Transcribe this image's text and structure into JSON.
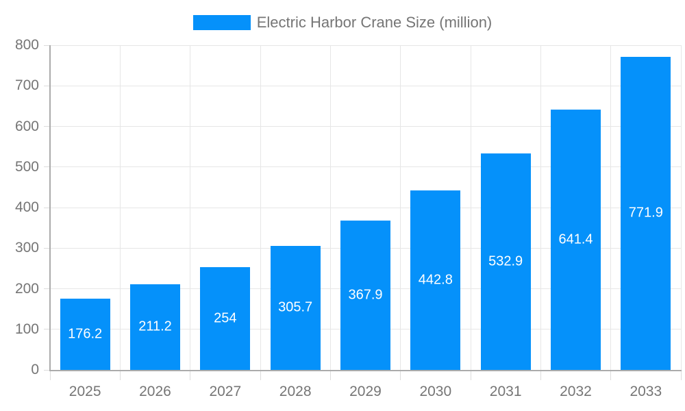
{
  "chart_data": {
    "type": "bar",
    "title": "Electric Harbor Crane Size (million)",
    "categories": [
      "2025",
      "2026",
      "2027",
      "2028",
      "2029",
      "2030",
      "2031",
      "2032",
      "2033"
    ],
    "values": [
      176.2,
      211.2,
      254,
      305.7,
      367.9,
      442.8,
      532.9,
      641.4,
      771.9
    ],
    "value_labels": [
      "176.2",
      "211.2",
      "254",
      "305.7",
      "367.9",
      "442.8",
      "532.9",
      "641.4",
      "771.9"
    ],
    "xlabel": "",
    "ylabel": "",
    "ylim": [
      0,
      800
    ],
    "y_ticks": [
      0,
      100,
      200,
      300,
      400,
      500,
      600,
      700,
      800
    ],
    "grid": "both",
    "legend_position": "top-center",
    "colors": {
      "bar": "#0591fa",
      "axis_text": "#757575",
      "grid_line": "#e6e6e6",
      "axis_line": "#ababab",
      "tick_line": "#dcdcdc",
      "value_label": "#ffffff",
      "background": "#ffffff"
    }
  }
}
